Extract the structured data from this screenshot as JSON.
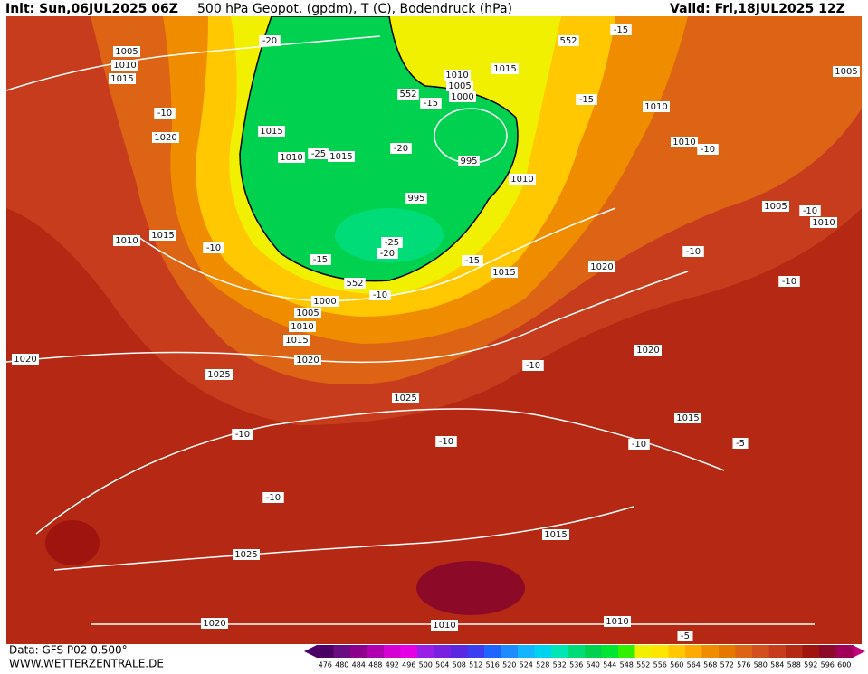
{
  "header": {
    "init": "Init: Sun,06JUL2025 06Z",
    "title": "500 hPa Geopot. (gpdm), T (C), Bodendruck (hPa)",
    "valid": "Valid: Fri,18JUL2025 12Z"
  },
  "map": {
    "labels": [
      "1005",
      "1010",
      "1015",
      "-10",
      "1020",
      "1015",
      "1010",
      "-25",
      "1015",
      "-20",
      "995",
      "995",
      "1010",
      "552",
      "-15",
      "1010",
      "1005",
      "1000",
      "1015",
      "552",
      "-15",
      "-20",
      "-15",
      "1010",
      "1010",
      "-10",
      "1005",
      "1005",
      "-10",
      "1010",
      "-10",
      "1020",
      "-10",
      "1015",
      "-15",
      "1010",
      "1015",
      "-10",
      "-15",
      "-20",
      "-25",
      "552",
      "-10",
      "1000",
      "1005",
      "1010",
      "1015",
      "1020",
      "1020",
      "1025",
      "1025",
      "-10",
      "1020",
      "1015",
      "-10",
      "-10",
      "-10",
      "-5",
      "-10",
      "1025",
      "1015",
      "1020",
      "1010",
      "1010",
      "-5"
    ]
  },
  "colorbar": {
    "values": [
      476,
      480,
      484,
      488,
      492,
      496,
      500,
      504,
      508,
      512,
      516,
      520,
      524,
      528,
      532,
      536,
      540,
      544,
      548,
      552,
      556,
      560,
      564,
      568,
      572,
      576,
      580,
      584,
      588,
      592,
      596,
      600
    ],
    "colors": [
      "#4b0066",
      "#6a0d83",
      "#8c008c",
      "#b000b0",
      "#d400d4",
      "#e600e6",
      "#9a1fe6",
      "#7a20e0",
      "#5a28e0",
      "#3c3cf0",
      "#1e64ff",
      "#1e8cff",
      "#14b4ff",
      "#00d2f0",
      "#00e6b4",
      "#00dc78",
      "#00d250",
      "#00e632",
      "#32f000",
      "#f0f000",
      "#ffe600",
      "#ffc800",
      "#ffaa00",
      "#f08c00",
      "#e67800",
      "#dc6414",
      "#d2501e",
      "#c83c1e",
      "#b42814",
      "#a0140f",
      "#8c0a28",
      "#a0005a"
    ]
  },
  "footer": {
    "source": "Data: GFS P02 0.500°",
    "website": "WWW.WETTERZENTRALE.DE"
  }
}
